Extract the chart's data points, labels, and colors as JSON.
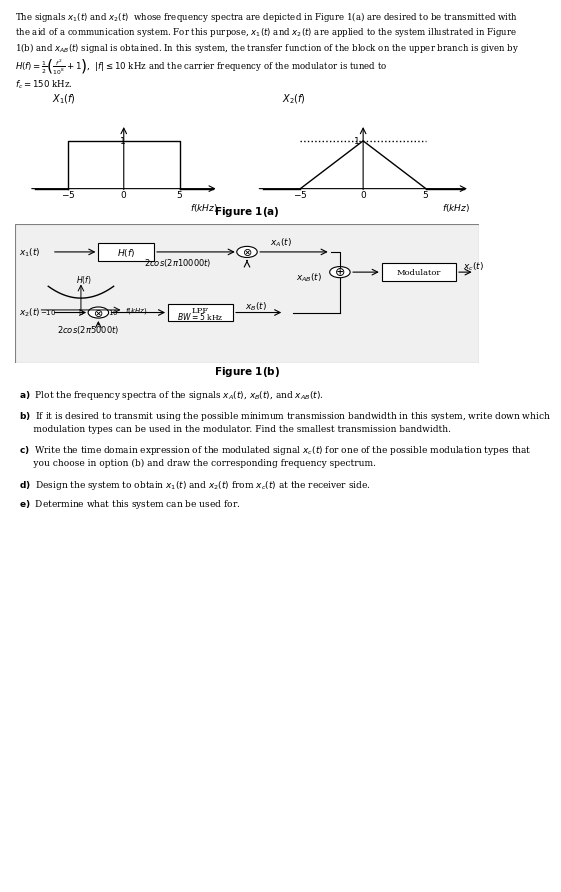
{
  "bg_color": "#f5f5f5",
  "text_color": "#000000",
  "title_text": "The signals $x_1(t)$ and $x_2(t)$ whose frequency spectra are depicted in Figure 1(a) are desired to be transmitted with\nthe aid of a communication system. For this purpose, $x_1(t)$ and $x_2(t)$ are applied to the system illustrated in Figure\n1(b) and $x_{AB}(t)$ signal is obtained. In this system, the transfer function of the block on the upper branch is given by\n$H(f)=\\frac{1}{2}\\left(\\frac{f^2}{10^8}+1\\right)$, $|f|\\leq 10$ kHz and the carrier frequency of the modulator is tuned to $f_c = 150$ kHz.",
  "fig1a_caption": "Figure 1(a)",
  "fig1b_caption": "Figure 1(b)",
  "questions": [
    "a) Plot the frequency spectra of the signals $x_A(t)$, $x_B(t)$, and $x_{AB}(t)$.",
    "b) If it is desired to transmit using the possible minimum transmission bandwidth in this system, write down which\n     modulation types can be used in the modulator. Find the smallest transmission bandwidth.",
    "c) Write the time domain expression of the modulated signal $x_c(t)$ for one of the possible modulation types that\n     you choose in option (b) and draw the corresponding frequency spectrum.",
    "d) Design the system to obtain $x_1(t)$ and $x_2(t)$ from $x_c(t)$ at the receiver side.",
    "e) Determine what this system can be used for."
  ]
}
